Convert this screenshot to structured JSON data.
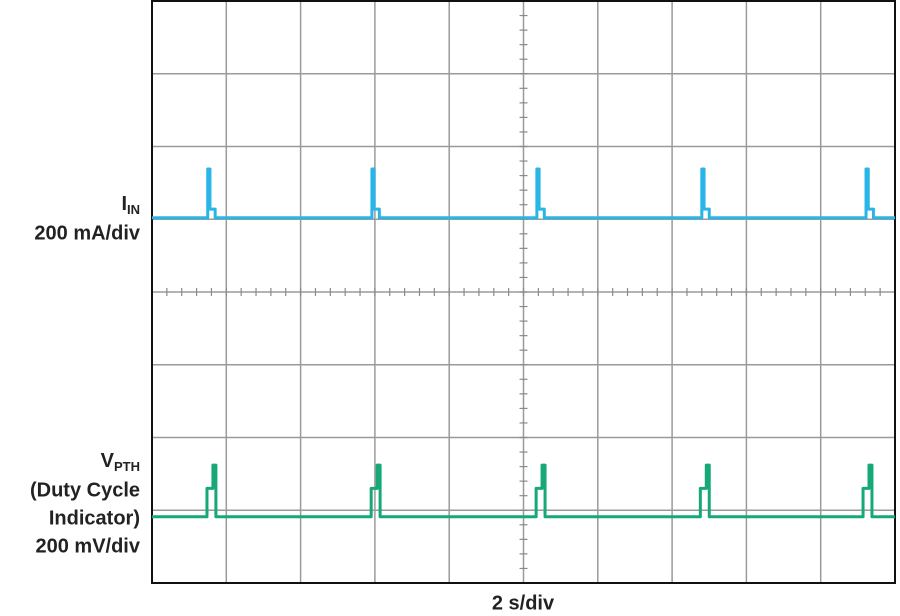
{
  "chart_data": {
    "type": "line",
    "xlabel": "2 s/div",
    "xlim": [
      0,
      10
    ],
    "ylim": [
      0,
      8
    ],
    "xticks": [
      0,
      1,
      2,
      3,
      4,
      5,
      6,
      7,
      8,
      9,
      10
    ],
    "yticks": [
      0,
      1,
      2,
      3,
      4,
      5,
      6,
      7,
      8
    ],
    "grid": true,
    "annotations": [
      {
        "symbol": "I",
        "subscript": "IN",
        "lines": [
          "200 mA/div"
        ]
      },
      {
        "symbol": "V",
        "subscript": "PTH",
        "lines": [
          "(Duty Cycle",
          "Indicator)",
          "200 mV/div"
        ]
      }
    ],
    "series": [
      {
        "color": "#29b5e8",
        "x": [
          0,
          0.75,
          0.75,
          0.78,
          0.78,
          0.85,
          0.85,
          2.96,
          2.96,
          2.99,
          2.99,
          3.06,
          3.06,
          5.18,
          5.18,
          5.21,
          5.21,
          5.28,
          5.28,
          7.4,
          7.4,
          7.43,
          7.43,
          7.5,
          7.5,
          9.61,
          9.61,
          9.64,
          9.64,
          9.71,
          9.71,
          10
        ],
        "values": [
          5.02,
          5.02,
          5.69,
          5.69,
          5.14,
          5.14,
          5.02,
          5.02,
          5.69,
          5.69,
          5.14,
          5.14,
          5.02,
          5.02,
          5.69,
          5.69,
          5.14,
          5.14,
          5.02,
          5.02,
          5.69,
          5.69,
          5.14,
          5.14,
          5.02,
          5.02,
          5.69,
          5.69,
          5.14,
          5.14,
          5.02,
          5.02
        ]
      },
      {
        "color": "#16a878",
        "x": [
          0,
          0.74,
          0.74,
          0.82,
          0.82,
          0.86,
          0.86,
          2.95,
          2.95,
          3.03,
          3.03,
          3.07,
          3.07,
          5.17,
          5.17,
          5.25,
          5.25,
          5.29,
          5.29,
          7.38,
          7.38,
          7.46,
          7.46,
          7.5,
          7.5,
          9.57,
          9.57,
          9.65,
          9.65,
          9.69,
          9.69,
          10
        ],
        "values": [
          0.91,
          0.91,
          1.3,
          1.3,
          1.62,
          1.62,
          0.91,
          0.91,
          1.3,
          1.3,
          1.62,
          1.62,
          0.91,
          0.91,
          1.3,
          1.3,
          1.62,
          1.62,
          0.91,
          0.91,
          1.3,
          1.3,
          1.62,
          1.62,
          0.91,
          0.91,
          1.3,
          1.3,
          1.62,
          1.62,
          0.91,
          0.91
        ]
      }
    ]
  }
}
